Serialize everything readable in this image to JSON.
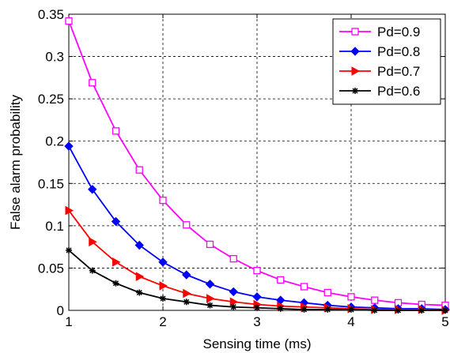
{
  "chart_data": {
    "type": "line",
    "title": "",
    "xlabel": "Sensing time (ms)",
    "ylabel": "False alarm probability",
    "xlim": [
      1,
      5
    ],
    "ylim": [
      0,
      0.35
    ],
    "xticks": [
      1,
      2,
      3,
      4,
      5
    ],
    "xtick_labels": [
      "1",
      "2",
      "3",
      "4",
      "5"
    ],
    "yticks": [
      0,
      0.05,
      0.1,
      0.15,
      0.2,
      0.25,
      0.3,
      0.35
    ],
    "ytick_labels": [
      "0",
      "0.05",
      "0.1",
      "0.15",
      "0.2",
      "0.25",
      "0.3",
      "0.35"
    ],
    "grid": true,
    "legend_position": "top-right",
    "x": [
      1,
      1.25,
      1.5,
      1.75,
      2,
      2.25,
      2.5,
      2.75,
      3,
      3.25,
      3.5,
      3.75,
      4,
      4.25,
      4.5,
      4.75,
      5
    ],
    "series": [
      {
        "name": "Pd=0.9",
        "color": "#ff00ff",
        "marker": "square",
        "values": [
          0.342,
          0.269,
          0.212,
          0.166,
          0.13,
          0.101,
          0.078,
          0.061,
          0.047,
          0.036,
          0.028,
          0.021,
          0.016,
          0.012,
          0.009,
          0.007,
          0.006
        ]
      },
      {
        "name": "Pd=0.8",
        "color": "#0000ff",
        "marker": "diamond",
        "values": [
          0.194,
          0.143,
          0.105,
          0.077,
          0.057,
          0.042,
          0.031,
          0.022,
          0.016,
          0.012,
          0.009,
          0.006,
          0.004,
          0.003,
          0.002,
          0.002,
          0.001
        ]
      },
      {
        "name": "Pd=0.7",
        "color": "#ff0000",
        "marker": "triangle-right",
        "values": [
          0.118,
          0.081,
          0.057,
          0.04,
          0.029,
          0.02,
          0.014,
          0.01,
          0.007,
          0.005,
          0.004,
          0.003,
          0.002,
          0.001,
          0.001,
          0.001,
          0.0
        ]
      },
      {
        "name": "Pd=0.6",
        "color": "#000000",
        "marker": "star",
        "values": [
          0.071,
          0.047,
          0.032,
          0.021,
          0.014,
          0.01,
          0.006,
          0.004,
          0.003,
          0.002,
          0.001,
          0.001,
          0.001,
          0.0,
          0.0,
          0.0,
          0.0
        ]
      }
    ]
  }
}
